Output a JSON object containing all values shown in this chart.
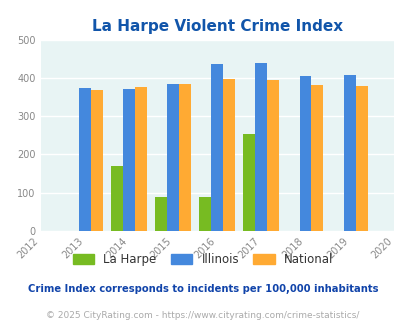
{
  "title": "La Harpe Violent Crime Index",
  "years": [
    2012,
    2013,
    2014,
    2015,
    2016,
    2017,
    2018,
    2019,
    2020
  ],
  "plot_years": [
    2013,
    2014,
    2015,
    2016,
    2017,
    2018,
    2019
  ],
  "la_harpe": [
    0,
    170,
    88,
    88,
    253,
    0,
    0
  ],
  "illinois": [
    373,
    370,
    384,
    437,
    438,
    406,
    408
  ],
  "national": [
    368,
    376,
    383,
    397,
    394,
    381,
    379
  ],
  "la_harpe_color": "#77bb22",
  "illinois_color": "#4488dd",
  "national_color": "#ffaa33",
  "bg_color": "#e8f4f4",
  "title_color": "#1155aa",
  "ylabel_max": 500,
  "yticks": [
    0,
    100,
    200,
    300,
    400,
    500
  ],
  "bar_width": 0.27,
  "legend_labels": [
    "La Harpe",
    "Illinois",
    "National"
  ],
  "footnote1": "Crime Index corresponds to incidents per 100,000 inhabitants",
  "footnote2": "© 2025 CityRating.com - https://www.cityrating.com/crime-statistics/",
  "footnote1_color": "#1144aa",
  "footnote2_color": "#aaaaaa",
  "grid_color": "#c8dde0"
}
